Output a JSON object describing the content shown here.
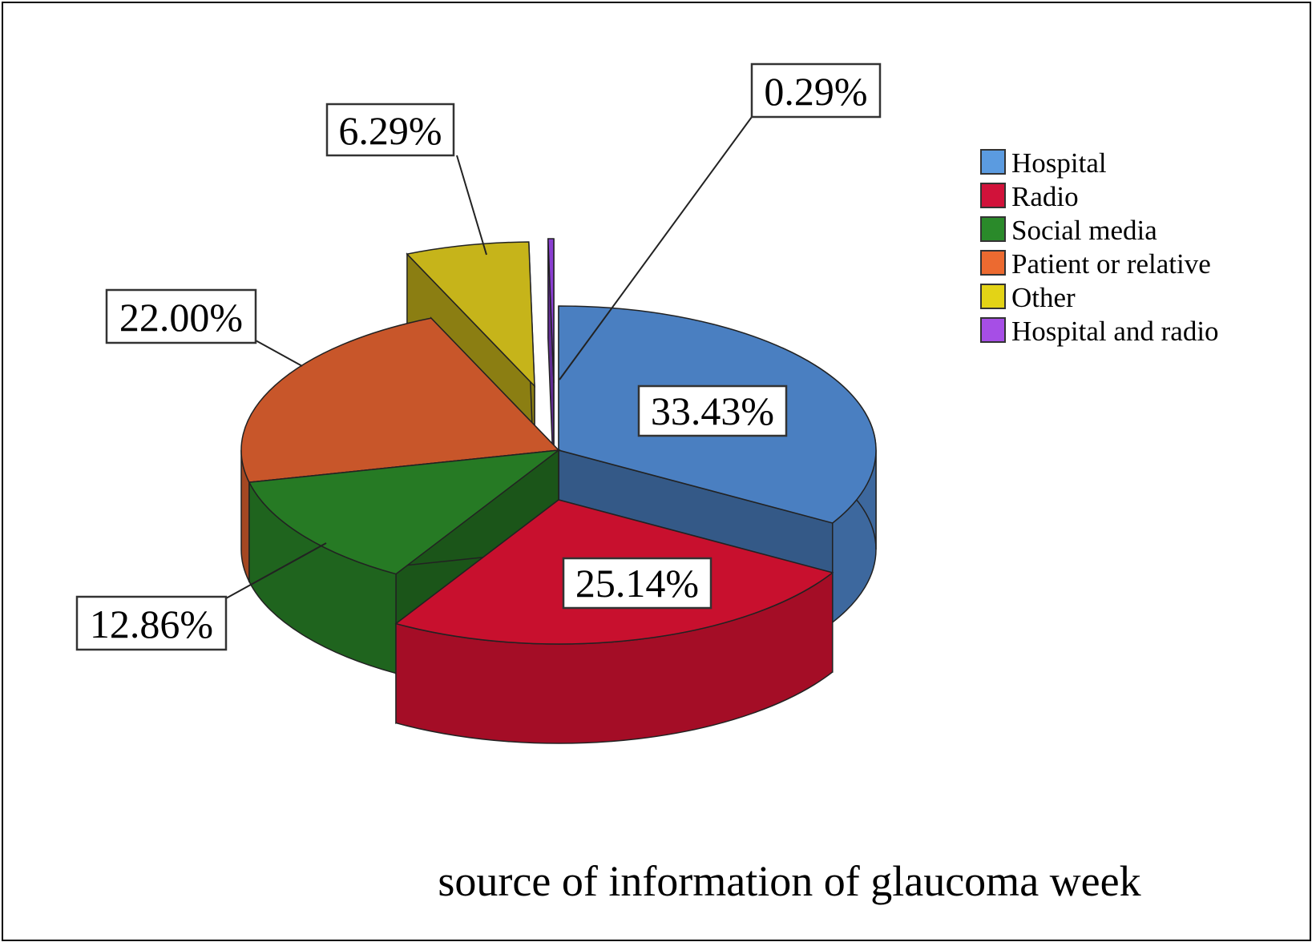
{
  "chart_data": {
    "type": "pie",
    "title": "source of information of glaucoma week",
    "legend_position": "right",
    "categories": [
      "Hospital",
      "Radio",
      "Social media",
      "Patient or relative",
      "Other",
      "Hospital and radio"
    ],
    "values": [
      33.43,
      25.14,
      12.86,
      22.0,
      6.29,
      0.29
    ],
    "labels": [
      "33.43%",
      "25.14%",
      "12.86%",
      "22.00%",
      "6.29%",
      "0.29%"
    ],
    "colors": [
      "#4a7fc1",
      "#c8102e",
      "#267a24",
      "#c8562a",
      "#c6b41a",
      "#8a3fd1"
    ],
    "legend_colors": [
      "#5b9be0",
      "#d1123a",
      "#2a8a2a",
      "#ec6a30",
      "#e3d316",
      "#a64ee6"
    ],
    "exploded": [
      "Radio",
      "Other",
      "Hospital and radio"
    ]
  }
}
